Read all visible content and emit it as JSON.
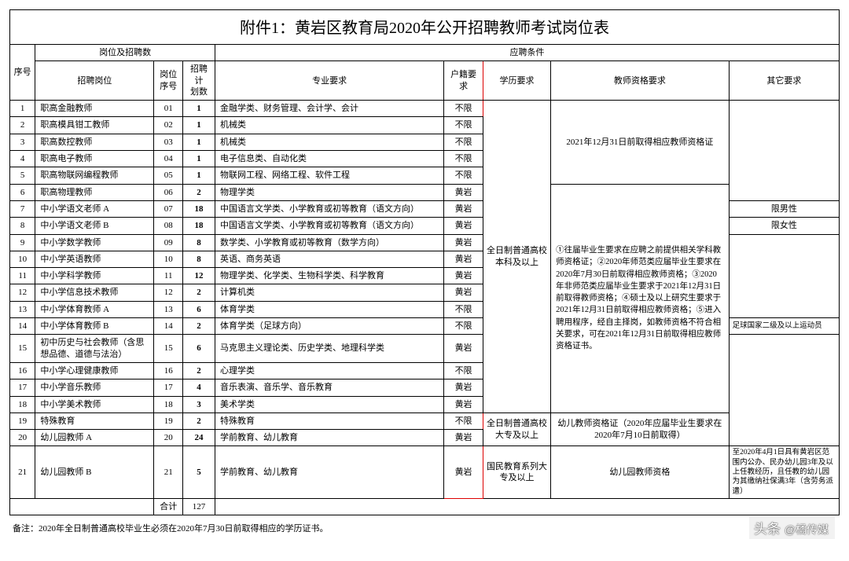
{
  "title": "附件1：黄岩区教育局2020年公开招聘教师考试岗位表",
  "group1": "岗位及招聘数",
  "group2": "应聘条件",
  "h": {
    "seq": "序号",
    "pos": "招聘岗位",
    "code": "岗位\n序号",
    "plan": "招聘计\n划数",
    "pro": "专业要求",
    "huji": "户籍要求",
    "edu": "学历要求",
    "qual": "教师资格要求",
    "other": "其它要求"
  },
  "edu1": "全日制普通高校本科及以上",
  "edu2": "全日制普通高校大专及以上",
  "edu3": "国民教育系列大专及以上",
  "qual1": "2021年12月31日前取得相应教师资格证",
  "qual2": "①往届毕业生要求在应聘之前提供相关学科教师资格证；②2020年师范类应届毕业生要求在2020年7月30日前取得相应教师资格；③2020年非师范类应届毕业生要求于2021年12月31日前取得教师资格；④硕士及以上研究生要求于2021年12月31日前取得相应教师资格；⑤进入聘用程序，经自主择岗，如教师资格不符合相关要求，可在2021年12月31日前取得相应教师资格证书。",
  "qual3": "幼儿教师资格证（2020年应届毕业生要求在2020年7月10日前取得）",
  "qual4": "幼儿园教师资格",
  "other1": "限男性",
  "other2": "限女性",
  "other3": "足球国家二级及以上运动员",
  "other4": "至2020年4月1日具有黄岩区范围内公办、民办幼儿园3年及以上任教经历，且任教的幼儿园为其缴纳社保满3年（含劳务派遣）",
  "r": [
    {
      "n": "1",
      "p": "职高金融教师",
      "c": "01",
      "q": "1",
      "m": "金融学类、财务管理、会计学、会计",
      "h": "不限"
    },
    {
      "n": "2",
      "p": "职高模具钳工教师",
      "c": "02",
      "q": "1",
      "m": "机械类",
      "h": "不限"
    },
    {
      "n": "3",
      "p": "职高数控教师",
      "c": "03",
      "q": "1",
      "m": "机械类",
      "h": "不限"
    },
    {
      "n": "4",
      "p": "职高电子教师",
      "c": "04",
      "q": "1",
      "m": "电子信息类、自动化类",
      "h": "不限"
    },
    {
      "n": "5",
      "p": "职高物联网编程教师",
      "c": "05",
      "q": "1",
      "m": "物联网工程、网络工程、软件工程",
      "h": "不限"
    },
    {
      "n": "6",
      "p": "职高物理教师",
      "c": "06",
      "q": "2",
      "m": "物理学类",
      "h": "黄岩"
    },
    {
      "n": "7",
      "p": "中小学语文老师 A",
      "c": "07",
      "q": "18",
      "m": "中国语言文学类、小学教育或初等教育（语文方向）",
      "h": "黄岩"
    },
    {
      "n": "8",
      "p": "中小学语文老师 B",
      "c": "08",
      "q": "18",
      "m": "中国语言文学类、小学教育或初等教育（语文方向）",
      "h": "黄岩"
    },
    {
      "n": "9",
      "p": "中小学数学教师",
      "c": "09",
      "q": "8",
      "m": "数学类、小学教育或初等教育（数学方向）",
      "h": "黄岩"
    },
    {
      "n": "10",
      "p": "中小学英语教师",
      "c": "10",
      "q": "8",
      "m": "英语、商务英语",
      "h": "黄岩"
    },
    {
      "n": "11",
      "p": "中小学科学教师",
      "c": "11",
      "q": "12",
      "m": "物理学类、化学类、生物科学类、科学教育",
      "h": "黄岩"
    },
    {
      "n": "12",
      "p": "中小学信息技术教师",
      "c": "12",
      "q": "2",
      "m": "计算机类",
      "h": "黄岩"
    },
    {
      "n": "13",
      "p": "中小学体育教师 A",
      "c": "13",
      "q": "6",
      "m": "体育学类",
      "h": "不限"
    },
    {
      "n": "14",
      "p": "中小学体育教师 B",
      "c": "14",
      "q": "2",
      "m": "体育学类（足球方向）",
      "h": "不限"
    },
    {
      "n": "15",
      "p": "初中历史与社会教师（含思想品德、道德与法治）",
      "c": "15",
      "q": "6",
      "m": "马克思主义理论类、历史学类、地理科学类",
      "h": "黄岩"
    },
    {
      "n": "16",
      "p": "中小学心理健康教师",
      "c": "16",
      "q": "2",
      "m": "心理学类",
      "h": "不限"
    },
    {
      "n": "17",
      "p": "中小学音乐教师",
      "c": "17",
      "q": "4",
      "m": "音乐表演、音乐学、音乐教育",
      "h": "黄岩"
    },
    {
      "n": "18",
      "p": "中小学美术教师",
      "c": "18",
      "q": "3",
      "m": "美术学类",
      "h": "黄岩"
    },
    {
      "n": "19",
      "p": "特殊教育",
      "c": "19",
      "q": "2",
      "m": "特殊教育",
      "h": "不限"
    },
    {
      "n": "20",
      "p": "幼儿园教师 A",
      "c": "20",
      "q": "24",
      "m": "学前教育、幼儿教育",
      "h": "黄岩"
    },
    {
      "n": "21",
      "p": "幼儿园教师 B",
      "c": "21",
      "q": "5",
      "m": "学前教育、幼儿教育",
      "h": "黄岩"
    }
  ],
  "total_label": "合计",
  "total": "127",
  "note": "备注：2020年全日制普通高校毕业生必须在2020年7月30日前取得相应的学历证书。",
  "wm_prefix": "头条",
  "wm": "@橘传媒"
}
